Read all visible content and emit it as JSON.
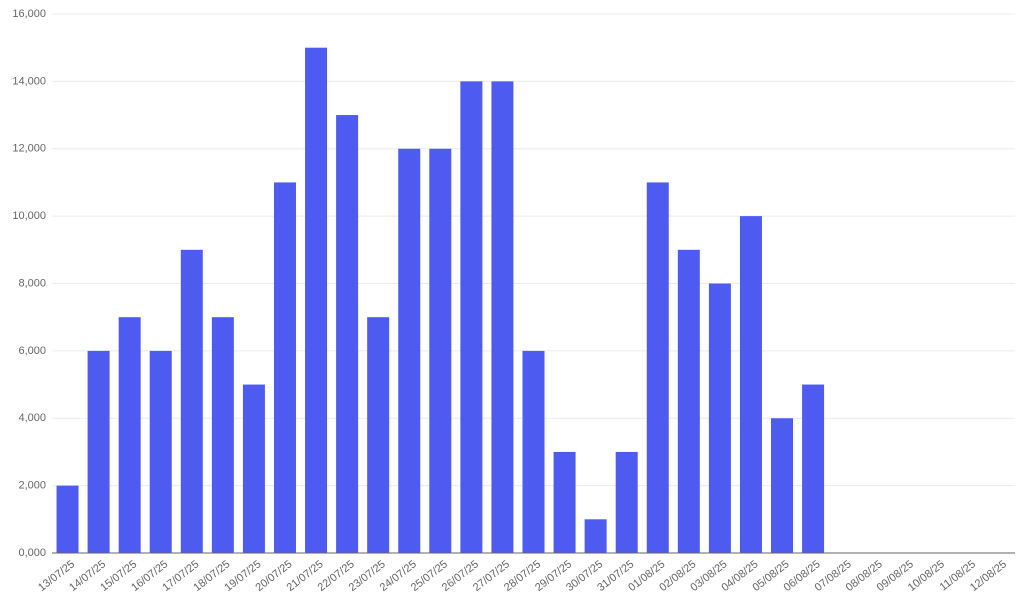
{
  "chart_data": {
    "type": "bar",
    "categories": [
      "13/07/25",
      "14/07/25",
      "15/07/25",
      "16/07/25",
      "17/07/25",
      "18/07/25",
      "19/07/25",
      "20/07/25",
      "21/07/25",
      "22/07/25",
      "23/07/25",
      "24/07/25",
      "25/07/25",
      "26/07/25",
      "27/07/25",
      "28/07/25",
      "29/07/25",
      "30/07/25",
      "31/07/25",
      "01/08/25",
      "02/08/25",
      "03/08/25",
      "04/08/25",
      "05/08/25",
      "06/08/25",
      "07/08/25",
      "08/08/25",
      "09/08/25",
      "10/08/25",
      "11/08/25",
      "12/08/25"
    ],
    "values": [
      2000,
      6000,
      7000,
      6000,
      9000,
      7000,
      5000,
      11000,
      15000,
      13000,
      7000,
      12000,
      12000,
      14000,
      14000,
      6000,
      3000,
      1000,
      3000,
      11000,
      9000,
      8000,
      10000,
      4000,
      5000,
      0,
      0,
      0,
      0,
      0,
      0
    ],
    "color": "#4d5bf1",
    "ylim": [
      0,
      16000
    ],
    "yticks": [
      {
        "value": 0,
        "label": "0,000"
      },
      {
        "value": 2000,
        "label": "2,000"
      },
      {
        "value": 4000,
        "label": "4,000"
      },
      {
        "value": 6000,
        "label": "6,000"
      },
      {
        "value": 8000,
        "label": "8,000"
      },
      {
        "value": 10000,
        "label": "10,000"
      },
      {
        "value": 12000,
        "label": "12,000"
      },
      {
        "value": 14000,
        "label": "14,000"
      },
      {
        "value": 16000,
        "label": "16,000"
      }
    ],
    "grid": true
  }
}
